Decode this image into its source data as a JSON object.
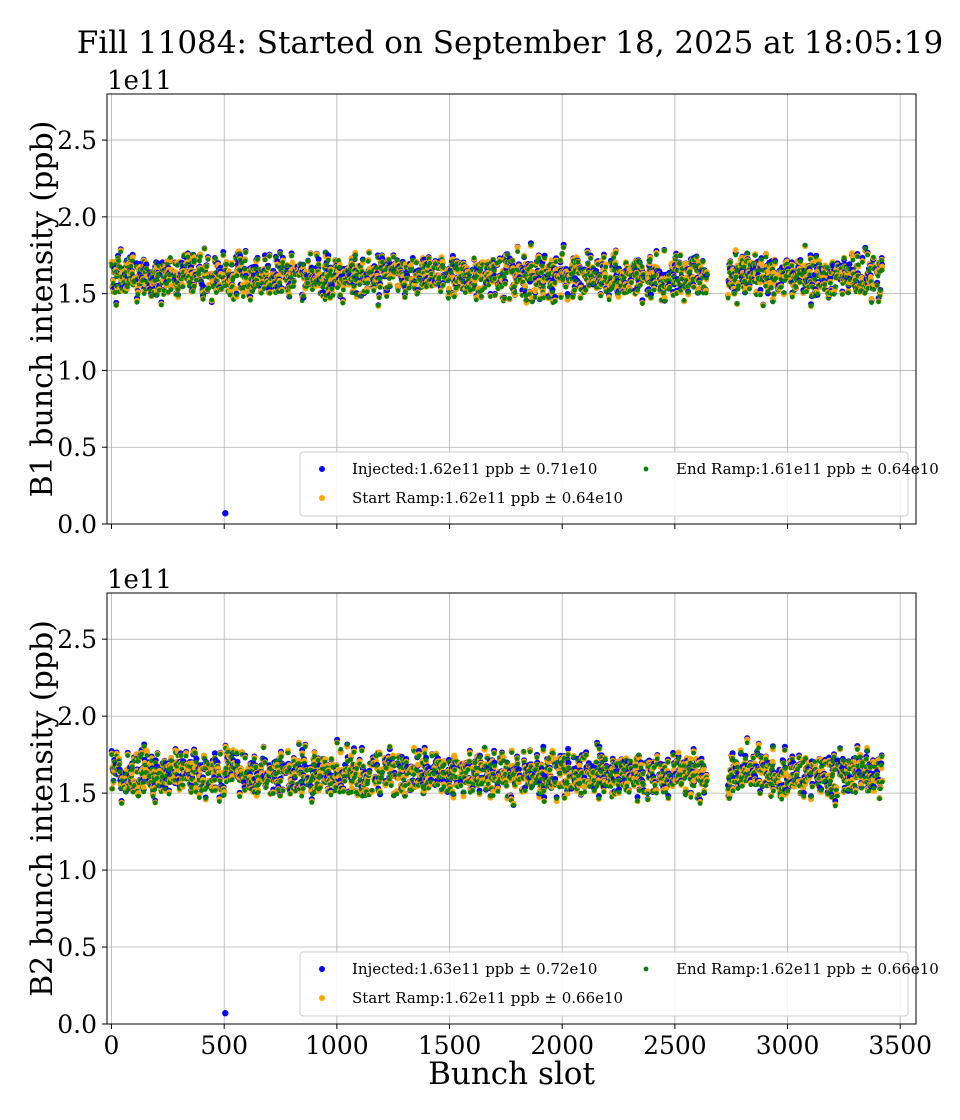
{
  "figure": {
    "title": "Fill 11084: Started on September 18, 2025 at 18:05:19",
    "colors": {
      "injected": "#0000ff",
      "start_ramp": "#ffa500",
      "end_ramp": "#008000",
      "grid": "#b0b0b0"
    }
  },
  "chart_data": [
    {
      "type": "scatter",
      "xlabel": "Bunch slot",
      "ylabel": "B1 bunch intensity (ppb)",
      "offset_label": "1e11",
      "xlim": [
        -20,
        3570
      ],
      "ylim": [
        0,
        2.8
      ],
      "xticks": [
        0,
        500,
        1000,
        1500,
        2000,
        2500,
        3000,
        3500
      ],
      "yticks": [
        0.0,
        0.5,
        1.0,
        1.5,
        2.0,
        2.5
      ],
      "ytick_labels": [
        "0.0",
        "0.5",
        "1.0",
        "1.5",
        "2.0",
        "2.5"
      ],
      "show_xtick_labels": false,
      "grid": true,
      "legend_position": "lower right",
      "series": [
        {
          "name": "Injected:1.62e11 ppb ± 0.71e10",
          "mean": 1.62,
          "std": 0.071,
          "outlier": {
            "x": 505,
            "y": 0.07
          }
        },
        {
          "name": "Start Ramp:1.62e11 ppb ± 0.64e10",
          "mean": 1.62,
          "std": 0.064
        },
        {
          "name": "End Ramp:1.61e11 ppb ± 0.64e10",
          "mean": 1.61,
          "std": 0.064
        }
      ],
      "trains": [
        [
          1,
          48
        ],
        [
          56,
          103
        ],
        [
          111,
          158
        ],
        [
          166,
          213
        ],
        [
          221,
          268
        ],
        [
          276,
          323
        ],
        [
          331,
          378
        ],
        [
          386,
          433
        ],
        [
          441,
          488
        ],
        [
          496,
          543
        ],
        [
          551,
          598
        ],
        [
          606,
          653
        ],
        [
          661,
          708
        ],
        [
          716,
          763
        ],
        [
          771,
          818
        ],
        [
          826,
          873
        ],
        [
          881,
          928
        ],
        [
          936,
          983
        ],
        [
          991,
          1038
        ],
        [
          1046,
          1093
        ],
        [
          1101,
          1148
        ],
        [
          1156,
          1203
        ],
        [
          1211,
          1258
        ],
        [
          1266,
          1313
        ],
        [
          1321,
          1368
        ],
        [
          1376,
          1423
        ],
        [
          1431,
          1478
        ],
        [
          1491,
          1538
        ],
        [
          1546,
          1593
        ],
        [
          1601,
          1648
        ],
        [
          1656,
          1703
        ],
        [
          1711,
          1758
        ],
        [
          1766,
          1813
        ],
        [
          1821,
          1868
        ],
        [
          1876,
          1923
        ],
        [
          1931,
          1978
        ],
        [
          1986,
          2033
        ],
        [
          2041,
          2088
        ],
        [
          2096,
          2143
        ],
        [
          2151,
          2198
        ],
        [
          2206,
          2253
        ],
        [
          2261,
          2308
        ],
        [
          2316,
          2363
        ],
        [
          2376,
          2423
        ],
        [
          2431,
          2478
        ],
        [
          2486,
          2533
        ],
        [
          2541,
          2588
        ],
        [
          2596,
          2643
        ],
        [
          2736,
          2783
        ],
        [
          2791,
          2838
        ],
        [
          2846,
          2893
        ],
        [
          2901,
          2948
        ],
        [
          2956,
          3003
        ],
        [
          3011,
          3058
        ],
        [
          3066,
          3113
        ],
        [
          3121,
          3168
        ],
        [
          3176,
          3223
        ],
        [
          3231,
          3278
        ],
        [
          3286,
          3333
        ],
        [
          3341,
          3388
        ],
        [
          3396,
          3420
        ]
      ]
    },
    {
      "type": "scatter",
      "xlabel": "Bunch slot",
      "ylabel": "B2 bunch intensity (ppb)",
      "offset_label": "1e11",
      "xlim": [
        -20,
        3570
      ],
      "ylim": [
        0,
        2.8
      ],
      "xticks": [
        0,
        500,
        1000,
        1500,
        2000,
        2500,
        3000,
        3500
      ],
      "xtick_labels": [
        "0",
        "500",
        "1000",
        "1500",
        "2000",
        "2500",
        "3000",
        "3500"
      ],
      "yticks": [
        0.0,
        0.5,
        1.0,
        1.5,
        2.0,
        2.5
      ],
      "ytick_labels": [
        "0.0",
        "0.5",
        "1.0",
        "1.5",
        "2.0",
        "2.5"
      ],
      "show_xtick_labels": true,
      "grid": true,
      "legend_position": "lower right",
      "series": [
        {
          "name": "Injected:1.63e11 ppb ± 0.72e10",
          "mean": 1.63,
          "std": 0.072,
          "outlier": {
            "x": 505,
            "y": 0.07
          }
        },
        {
          "name": "Start Ramp:1.62e11 ppb ± 0.66e10",
          "mean": 1.62,
          "std": 0.066
        },
        {
          "name": "End Ramp:1.62e11 ppb ± 0.66e10",
          "mean": 1.62,
          "std": 0.066
        }
      ],
      "trains": [
        [
          1,
          48
        ],
        [
          56,
          103
        ],
        [
          111,
          158
        ],
        [
          166,
          213
        ],
        [
          221,
          268
        ],
        [
          276,
          323
        ],
        [
          331,
          378
        ],
        [
          386,
          433
        ],
        [
          441,
          488
        ],
        [
          496,
          543
        ],
        [
          551,
          598
        ],
        [
          606,
          653
        ],
        [
          661,
          708
        ],
        [
          716,
          763
        ],
        [
          771,
          818
        ],
        [
          826,
          873
        ],
        [
          881,
          928
        ],
        [
          936,
          983
        ],
        [
          991,
          1038
        ],
        [
          1046,
          1093
        ],
        [
          1101,
          1148
        ],
        [
          1156,
          1203
        ],
        [
          1211,
          1258
        ],
        [
          1266,
          1313
        ],
        [
          1321,
          1368
        ],
        [
          1376,
          1423
        ],
        [
          1431,
          1478
        ],
        [
          1491,
          1538
        ],
        [
          1546,
          1593
        ],
        [
          1601,
          1648
        ],
        [
          1656,
          1703
        ],
        [
          1711,
          1758
        ],
        [
          1766,
          1813
        ],
        [
          1821,
          1868
        ],
        [
          1876,
          1923
        ],
        [
          1931,
          1978
        ],
        [
          1986,
          2033
        ],
        [
          2041,
          2088
        ],
        [
          2096,
          2143
        ],
        [
          2151,
          2198
        ],
        [
          2206,
          2253
        ],
        [
          2261,
          2308
        ],
        [
          2316,
          2363
        ],
        [
          2376,
          2423
        ],
        [
          2431,
          2478
        ],
        [
          2486,
          2533
        ],
        [
          2541,
          2588
        ],
        [
          2596,
          2643
        ],
        [
          2736,
          2783
        ],
        [
          2791,
          2838
        ],
        [
          2846,
          2893
        ],
        [
          2901,
          2948
        ],
        [
          2956,
          3003
        ],
        [
          3011,
          3058
        ],
        [
          3066,
          3113
        ],
        [
          3121,
          3168
        ],
        [
          3176,
          3223
        ],
        [
          3231,
          3278
        ],
        [
          3286,
          3333
        ],
        [
          3341,
          3388
        ],
        [
          3396,
          3420
        ]
      ]
    }
  ]
}
